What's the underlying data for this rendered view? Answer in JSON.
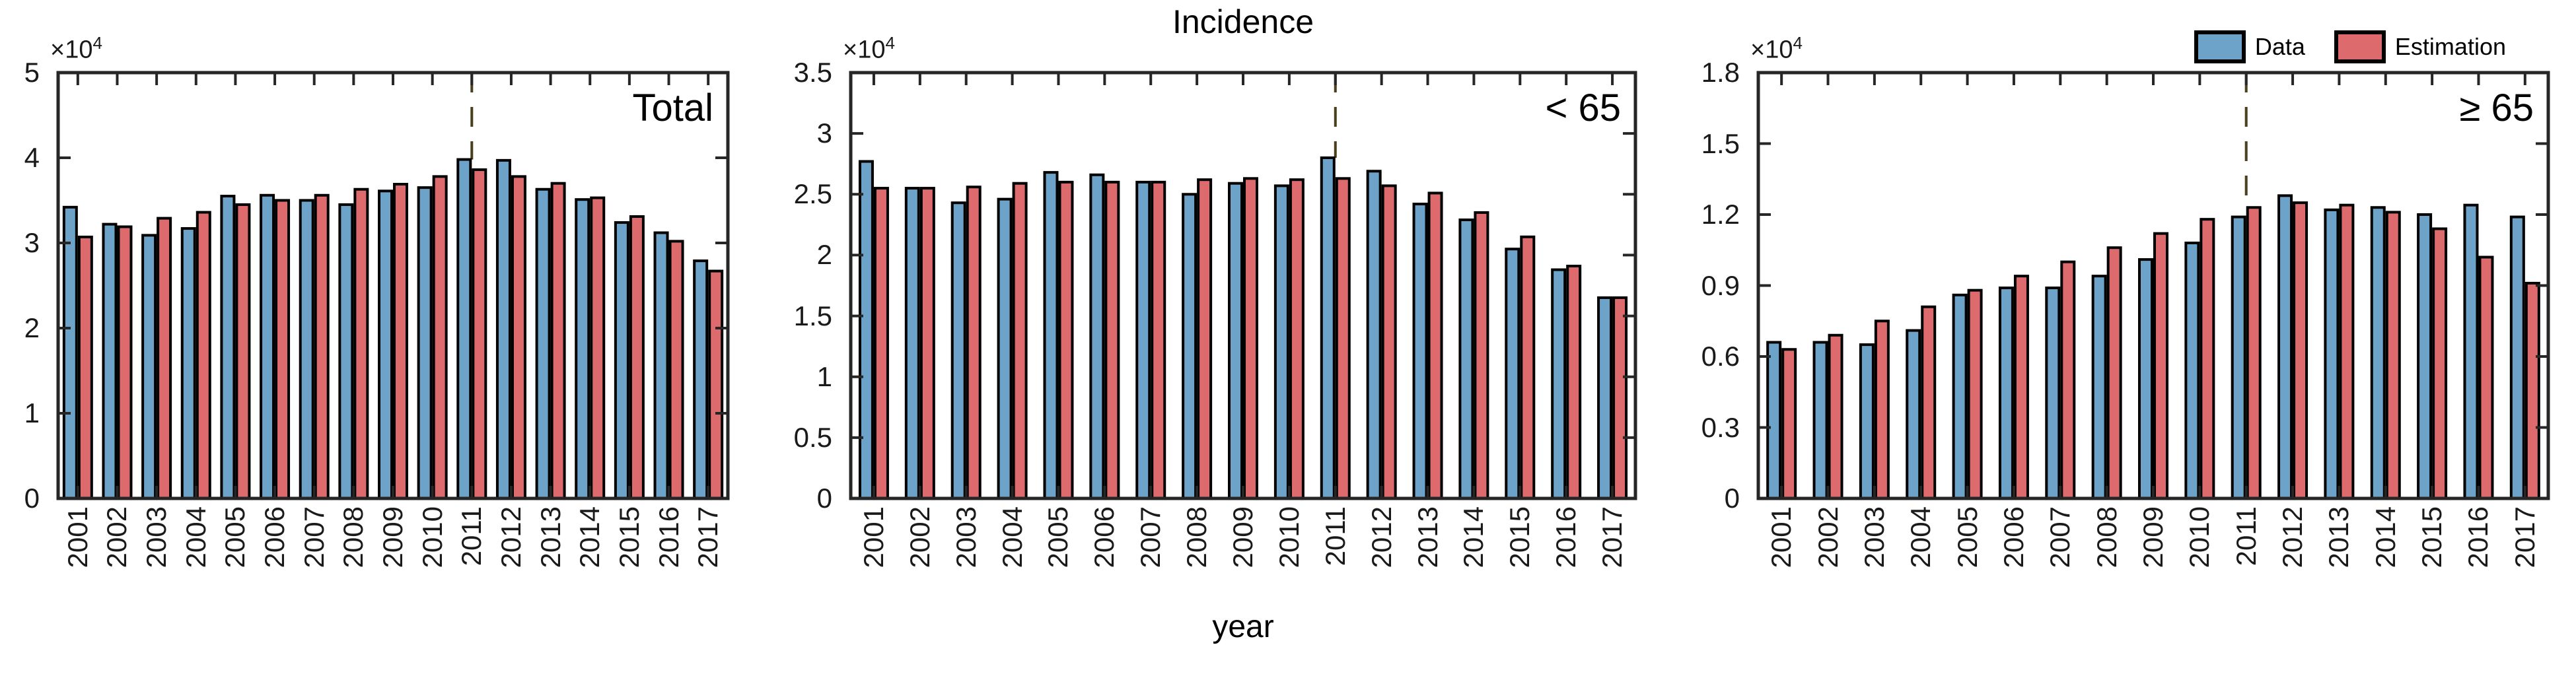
{
  "figure": {
    "title": "Incidence",
    "xlabel": "year",
    "exponent_base": "×10",
    "exponent_power": "4",
    "legend": [
      {
        "label": "Data",
        "color": "#6da3c9"
      },
      {
        "label": "Estimation",
        "color": "#dd6a6d"
      }
    ],
    "colors": {
      "data_bar": "#6da3c9",
      "estimation_bar": "#dd6a6d",
      "bar_edge": "#000000",
      "axis": "#262626",
      "dashed_line": "#4a401e",
      "tick_text": "#1a1a1a"
    },
    "dashed_marker_year": "2011",
    "legend_position": "top-right-outside"
  },
  "chart_data": [
    {
      "type": "bar",
      "annotation": "Total",
      "categories": [
        "2001",
        "2002",
        "2003",
        "2004",
        "2005",
        "2006",
        "2007",
        "2008",
        "2009",
        "2010",
        "2011",
        "2012",
        "2013",
        "2014",
        "2015",
        "2016",
        "2017"
      ],
      "series": [
        {
          "name": "Data",
          "values": [
            34200,
            32200,
            30900,
            31700,
            35500,
            35600,
            35000,
            34500,
            36100,
            36500,
            39800,
            39700,
            36300,
            35100,
            32400,
            31200,
            27900
          ]
        },
        {
          "name": "Estimation",
          "values": [
            30700,
            31900,
            32900,
            33600,
            34500,
            35000,
            35600,
            36300,
            36900,
            37800,
            38600,
            37800,
            37000,
            35300,
            33100,
            30200,
            26700
          ]
        }
      ],
      "ylim": [
        0,
        50000
      ],
      "ytick_values": [
        0,
        10000,
        20000,
        30000,
        40000,
        50000
      ],
      "ytick_labels": [
        "0",
        "1",
        "2",
        "3",
        "4",
        "5"
      ],
      "units_exponent": "×10^4",
      "marker_year": "2011",
      "grid": "off"
    },
    {
      "type": "bar",
      "annotation": "< 65",
      "categories": [
        "2001",
        "2002",
        "2003",
        "2004",
        "2005",
        "2006",
        "2007",
        "2008",
        "2009",
        "2010",
        "2011",
        "2012",
        "2013",
        "2014",
        "2015",
        "2016",
        "2017"
      ],
      "series": [
        {
          "name": "Data",
          "values": [
            27700,
            25500,
            24300,
            24600,
            26800,
            26600,
            26000,
            25000,
            25900,
            25700,
            28000,
            26900,
            24200,
            22900,
            20500,
            18800,
            16500
          ]
        },
        {
          "name": "Estimation",
          "values": [
            25500,
            25500,
            25600,
            25900,
            26000,
            26000,
            26000,
            26200,
            26300,
            26200,
            26300,
            25700,
            25100,
            23500,
            21500,
            19100,
            16500
          ]
        }
      ],
      "ylim": [
        0,
        35000
      ],
      "ytick_values": [
        0,
        5000,
        10000,
        15000,
        20000,
        25000,
        30000,
        35000
      ],
      "ytick_labels": [
        "0",
        "0.5",
        "1",
        "1.5",
        "2",
        "2.5",
        "3",
        "3.5"
      ],
      "units_exponent": "×10^4",
      "marker_year": "2011",
      "grid": "off"
    },
    {
      "type": "bar",
      "annotation": "≥ 65",
      "categories": [
        "2001",
        "2002",
        "2003",
        "2004",
        "2005",
        "2006",
        "2007",
        "2008",
        "2009",
        "2010",
        "2011",
        "2012",
        "2013",
        "2014",
        "2015",
        "2016",
        "2017"
      ],
      "series": [
        {
          "name": "Data",
          "values": [
            6600,
            6600,
            6500,
            7100,
            8600,
            8900,
            8900,
            9400,
            10100,
            10800,
            11900,
            12800,
            12200,
            12300,
            12000,
            12400,
            11900
          ]
        },
        {
          "name": "Estimation",
          "values": [
            6300,
            6900,
            7500,
            8100,
            8800,
            9400,
            10000,
            10600,
            11200,
            11800,
            12300,
            12500,
            12400,
            12100,
            11400,
            10200,
            9100
          ]
        }
      ],
      "ylim": [
        0,
        18000
      ],
      "ytick_values": [
        0,
        3000,
        6000,
        9000,
        12000,
        15000,
        18000
      ],
      "ytick_labels": [
        "0",
        "0.3",
        "0.6",
        "0.9",
        "1.2",
        "1.5",
        "1.8"
      ],
      "units_exponent": "×10^4",
      "marker_year": "2011",
      "grid": "off"
    }
  ]
}
